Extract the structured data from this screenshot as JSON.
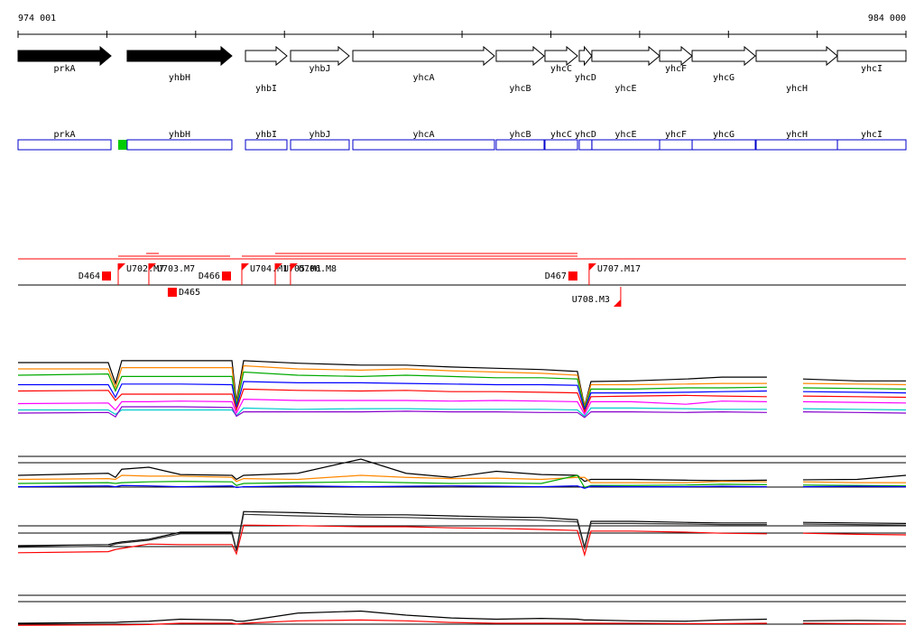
{
  "ruler": {
    "range": [
      974001,
      984000
    ],
    "ticks": [
      974001,
      975001,
      976001,
      977001,
      978001,
      979001,
      980001,
      981001,
      982001,
      983001,
      984000
    ],
    "labels": [
      {
        "value": 974001,
        "label": "974 001"
      },
      {
        "value": 984000,
        "label": "984 000"
      }
    ]
  },
  "genes": [
    {
      "name": "prkA",
      "start": 974001,
      "end": 975048,
      "color": "#000000"
    },
    {
      "name": "yhbH",
      "start": 975230,
      "end": 976409,
      "color": "#000000"
    },
    {
      "name": "yhbI",
      "start": 976562,
      "end": 977029,
      "color": "#ffffff"
    },
    {
      "name": "yhbJ",
      "start": 977070,
      "end": 977730,
      "color": "#ffffff"
    },
    {
      "name": "yhcA",
      "start": 977771,
      "end": 979366,
      "color": "#ffffff"
    },
    {
      "name": "yhcB",
      "start": 979386,
      "end": 979925,
      "color": "#ffffff"
    },
    {
      "name": "yhcC",
      "start": 979935,
      "end": 980301,
      "color": "#ffffff"
    },
    {
      "name": "yhcD",
      "start": 980321,
      "end": 980463,
      "color": "#ffffff"
    },
    {
      "name": "yhcE",
      "start": 980463,
      "end": 981226,
      "color": "#ffffff"
    },
    {
      "name": "yhcF",
      "start": 981226,
      "end": 981592,
      "color": "#ffffff"
    },
    {
      "name": "yhcG",
      "start": 981592,
      "end": 982303,
      "color": "#ffffff"
    },
    {
      "name": "yhcH",
      "start": 982313,
      "end": 983228,
      "color": "#ffffff"
    },
    {
      "name": "yhcI",
      "start": 983228,
      "end": 984000,
      "color": "#ffffff"
    }
  ],
  "features": [
    {
      "name": "D464",
      "kind": "box",
      "strand": "+",
      "position": 974997
    },
    {
      "name": "U702.M7",
      "kind": "flag",
      "strand": "+",
      "position": 975129
    },
    {
      "name": "U703.M7",
      "kind": "flag",
      "strand": "+",
      "position": 975474
    },
    {
      "name": "D465",
      "kind": "box",
      "strand": "-",
      "position": 975738
    },
    {
      "name": "D466",
      "kind": "box",
      "strand": "+",
      "position": 976348
    },
    {
      "name": "U704.M1",
      "kind": "flag",
      "strand": "+",
      "position": 976521
    },
    {
      "name": "U705.M1",
      "kind": "flag",
      "strand": "+",
      "position": 976897
    },
    {
      "name": "U706.M8",
      "kind": "flag",
      "strand": "+",
      "position": 977069
    },
    {
      "name": "D467",
      "kind": "box",
      "strand": "+",
      "position": 980249
    },
    {
      "name": "U707.M17",
      "kind": "flag",
      "strand": "+",
      "position": 980432
    },
    {
      "name": "U708.M3",
      "kind": "flag",
      "strand": "-",
      "position": 980788
    }
  ],
  "tracks": {
    "x": [
      974001,
      975017,
      975098,
      975169,
      975474,
      975830,
      976410,
      976460,
      976541,
      977151,
      977862,
      978370,
      978879,
      979386,
      979894,
      980300,
      980381,
      980453,
      980910,
      981520,
      981926,
      982434,
      982800,
      982841,
      983450,
      984000
    ],
    "panels": [
      {
        "ylim": [
          0,
          100
        ],
        "series": [
          {
            "color": "#000000",
            "values": [
              90,
              90,
              57,
              93,
              93,
              93,
              93,
              29,
              93,
              89,
              86,
              86,
              83,
              81,
              79,
              76,
              21,
              60,
              61,
              64,
              67,
              67,
              null,
              64,
              61,
              61
            ]
          },
          {
            "color": "#ff8800",
            "values": [
              80,
              80,
              50,
              82,
              82,
              82,
              82,
              25,
              85,
              80,
              78,
              80,
              77,
              75,
              73,
              70,
              20,
              55,
              55,
              56,
              57,
              57,
              null,
              57,
              56,
              55
            ]
          },
          {
            "color": "#00aa00",
            "values": [
              70,
              72,
              45,
              68,
              68,
              68,
              68,
              22,
              75,
              70,
              68,
              70,
              68,
              66,
              66,
              64,
              18,
              48,
              48,
              50,
              50,
              51,
              null,
              50,
              49,
              48
            ]
          },
          {
            "color": "#0000ff",
            "values": [
              55,
              55,
              35,
              56,
              56,
              56,
              55,
              18,
              60,
              58,
              58,
              57,
              56,
              55,
              55,
              54,
              15,
              42,
              42,
              43,
              44,
              45,
              null,
              44,
              43,
              42
            ]
          },
          {
            "color": "#ff0000",
            "values": [
              45,
              46,
              30,
              40,
              40,
              40,
              40,
              15,
              48,
              46,
              45,
              46,
              44,
              44,
              43,
              42,
              12,
              36,
              37,
              38,
              37,
              36,
              null,
              37,
              36,
              35
            ]
          },
          {
            "color": "#ff00ff",
            "values": [
              25,
              26,
              15,
              28,
              28,
              29,
              28,
              10,
              32,
              30,
              30,
              30,
              29,
              30,
              29,
              28,
              8,
              28,
              28,
              24,
              29,
              28,
              null,
              28,
              27,
              26
            ]
          },
          {
            "color": "#00cccc",
            "values": [
              15,
              15,
              8,
              15,
              15,
              15,
              15,
              6,
              18,
              16,
              17,
              17,
              16,
              16,
              16,
              15,
              5,
              18,
              18,
              17,
              16,
              16,
              null,
              17,
              16,
              15
            ]
          },
          {
            "color": "#8800cc",
            "values": [
              10,
              11,
              4,
              20,
              20,
              20,
              19,
              5,
              12,
              12,
              12,
              13,
              12,
              12,
              11,
              11,
              3,
              12,
              12,
              11,
              12,
              11,
              null,
              12,
              11,
              10
            ]
          }
        ]
      },
      {
        "ylim": [
          0,
          100
        ],
        "series": [
          {
            "color": "#000000",
            "values": [
              40,
              45,
              35,
              55,
              60,
              42,
              40,
              30,
              40,
              45,
              80,
              45,
              35,
              50,
              42,
              40,
              25,
              30,
              30,
              28,
              27,
              28,
              null,
              29,
              30,
              40
            ]
          },
          {
            "color": "#ff8800",
            "values": [
              30,
              32,
              30,
              40,
              38,
              38,
              35,
              25,
              32,
              30,
              40,
              35,
              32,
              33,
              30,
              35,
              35,
              22,
              22,
              22,
              25,
              24,
              null,
              24,
              22,
              22
            ]
          },
          {
            "color": "#00aa00",
            "values": [
              20,
              22,
              20,
              22,
              24,
              25,
              24,
              15,
              20,
              22,
              24,
              22,
              20,
              21,
              20,
              40,
              10,
              15,
              15,
              16,
              18,
              17,
              null,
              16,
              15,
              14
            ]
          },
          {
            "color": "#0000ff",
            "values": [
              12,
              14,
              12,
              15,
              14,
              12,
              14,
              10,
              12,
              14,
              12,
              13,
              14,
              13,
              12,
              14,
              8,
              13,
              12,
              12,
              13,
              12,
              null,
              12,
              13,
              12
            ]
          }
        ]
      },
      {
        "ylim": [
          0,
          100
        ],
        "series": [
          {
            "color": "#000000",
            "values": [
              25,
              27,
              30,
              32,
              37,
              50,
              50,
              17,
              88,
              86,
              82,
              82,
              80,
              78,
              77,
              73,
              22,
              70,
              70,
              68,
              67,
              67,
              null,
              68,
              67,
              66
            ]
          },
          {
            "color": "#333333",
            "values": [
              22,
              24,
              28,
              30,
              35,
              47,
              47,
              15,
              83,
              80,
              78,
              77,
              75,
              74,
              72,
              69,
              20,
              66,
              66,
              65,
              64,
              64,
              null,
              65,
              64,
              63
            ]
          },
          {
            "color": "#ff0000",
            "values": [
              12,
              14,
              18,
              20,
              28,
              27,
              27,
              10,
              63,
              62,
              60,
              60,
              58,
              57,
              55,
              53,
              8,
              52,
              52,
              50,
              48,
              47,
              null,
              48,
              46,
              45
            ]
          }
        ]
      },
      {
        "ylim": [
          0,
          100
        ],
        "series": [
          {
            "color": "#000000",
            "values": [
              20,
              22,
              22,
              23,
              25,
              30,
              28,
              25,
              25,
              45,
              50,
              40,
              33,
              30,
              32,
              30,
              28,
              28,
              26,
              25,
              28,
              30,
              null,
              26,
              27,
              26
            ]
          },
          {
            "color": "#ff0000",
            "values": [
              15,
              16,
              16,
              16,
              17,
              20,
              20,
              18,
              20,
              26,
              28,
              26,
              22,
              20,
              20,
              20,
              20,
              20,
              20,
              19,
              19,
              20,
              null,
              20,
              19,
              18
            ]
          }
        ]
      }
    ]
  }
}
